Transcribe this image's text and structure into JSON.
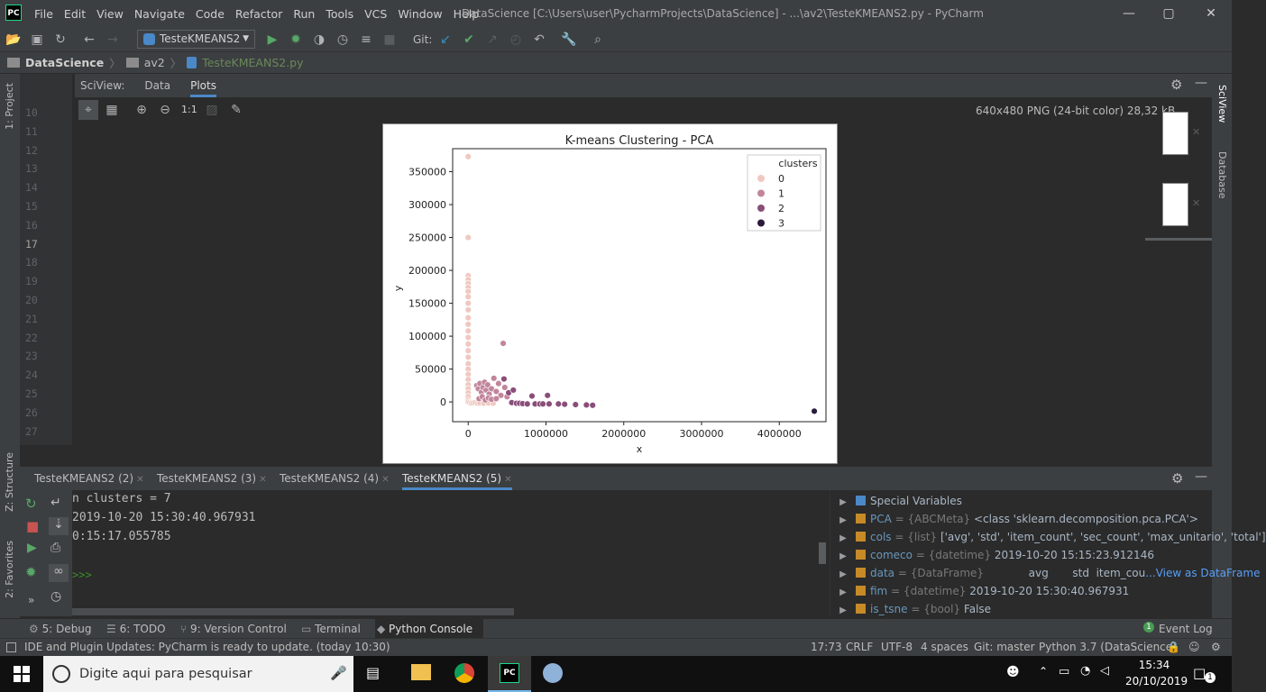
{
  "app": {
    "logo": "PC",
    "window_title": "DataScience [C:\\Users\\user\\PycharmProjects\\DataScience] - ...\\av2\\TesteKMEANS2.py - PyCharm",
    "menu": [
      "File",
      "Edit",
      "View",
      "Navigate",
      "Code",
      "Refactor",
      "Run",
      "Tools",
      "VCS",
      "Window",
      "Help"
    ],
    "min_icon": "—",
    "max_icon": "▢",
    "close_icon": "✕"
  },
  "toolbar": {
    "run_config": "TesteKMEANS2",
    "git_label": "Git:"
  },
  "breadcrumb": [
    "DataScience",
    "av2",
    "TesteKMEANS2.py"
  ],
  "left_strip": {
    "project": "1: Project",
    "structure": "Z: Structure",
    "favorites": "2: Favorites"
  },
  "right_strip": {
    "sciview": "SciView",
    "database": "Database"
  },
  "gutter": {
    "lines": [
      "10",
      "11",
      "12",
      "13",
      "14",
      "15",
      "16",
      "17",
      "18",
      "19",
      "20",
      "21",
      "22",
      "23",
      "24",
      "25",
      "26",
      "27"
    ]
  },
  "sciview": {
    "label": "SciView:",
    "tabs": [
      "Data",
      "Plots"
    ],
    "active_tab": "Plots",
    "zoom_label": "1:1",
    "image_info": "640x480 PNG (24-bit color) 28,32 kB"
  },
  "chart_data": {
    "type": "scatter",
    "title": "K-means Clustering - PCA",
    "xlabel": "x",
    "ylabel": "y",
    "xlim": [
      -200000,
      4600000
    ],
    "ylim": [
      -30000,
      385000
    ],
    "xticks": [
      "0",
      "1000000",
      "2000000",
      "3000000",
      "4000000"
    ],
    "yticks": [
      "0",
      "50000",
      "100000",
      "150000",
      "200000",
      "250000",
      "300000",
      "350000"
    ],
    "legend": {
      "title": "clusters",
      "position": "top-right",
      "labels": [
        "0",
        "1",
        "2",
        "3"
      ]
    },
    "colors": [
      "#efc9c1",
      "#c2859b",
      "#8a4e7a",
      "#2b1a3a"
    ],
    "series": [
      {
        "name": "0",
        "points": [
          [
            0,
            373000
          ],
          [
            0,
            250000
          ],
          [
            0,
            192000
          ],
          [
            0,
            186000
          ],
          [
            0,
            180000
          ],
          [
            0,
            174000
          ],
          [
            0,
            168000
          ],
          [
            0,
            160000
          ],
          [
            0,
            150000
          ],
          [
            0,
            140000
          ],
          [
            0,
            128000
          ],
          [
            0,
            118000
          ],
          [
            0,
            108000
          ],
          [
            0,
            98000
          ],
          [
            0,
            88000
          ],
          [
            0,
            78000
          ],
          [
            0,
            68000
          ],
          [
            0,
            58000
          ],
          [
            0,
            50000
          ],
          [
            0,
            42000
          ],
          [
            0,
            34000
          ],
          [
            0,
            26000
          ],
          [
            0,
            20000
          ],
          [
            0,
            14000
          ],
          [
            0,
            8000
          ],
          [
            0,
            3000
          ],
          [
            0,
            0
          ],
          [
            20000,
            -1000
          ],
          [
            40000,
            -2000
          ],
          [
            60000,
            -1500
          ],
          [
            90000,
            -1000
          ],
          [
            120000,
            -2000
          ],
          [
            150000,
            -1500
          ],
          [
            200000,
            -2000
          ],
          [
            260000,
            -1500
          ],
          [
            320000,
            -2000
          ]
        ]
      },
      {
        "name": "1",
        "points": [
          [
            110000,
            25000
          ],
          [
            130000,
            20000
          ],
          [
            150000,
            28000
          ],
          [
            170000,
            15000
          ],
          [
            190000,
            22000
          ],
          [
            210000,
            30000
          ],
          [
            230000,
            18000
          ],
          [
            250000,
            26000
          ],
          [
            270000,
            12000
          ],
          [
            300000,
            20000
          ],
          [
            330000,
            36000
          ],
          [
            360000,
            16000
          ],
          [
            390000,
            28000
          ],
          [
            420000,
            10000
          ],
          [
            450000,
            89000
          ],
          [
            470000,
            22000
          ],
          [
            500000,
            8000
          ],
          [
            140000,
            5000
          ],
          [
            180000,
            8000
          ],
          [
            220000,
            3000
          ],
          [
            260000,
            6000
          ],
          [
            300000,
            4000
          ],
          [
            360000,
            5000
          ]
        ]
      },
      {
        "name": "2",
        "points": [
          [
            460000,
            35000
          ],
          [
            520000,
            14000
          ],
          [
            560000,
            -1000
          ],
          [
            580000,
            18000
          ],
          [
            620000,
            -2000
          ],
          [
            660000,
            -2000
          ],
          [
            700000,
            -2500
          ],
          [
            760000,
            -3000
          ],
          [
            820000,
            9000
          ],
          [
            860000,
            -3000
          ],
          [
            920000,
            -3000
          ],
          [
            960000,
            -3000
          ],
          [
            1020000,
            10000
          ],
          [
            1040000,
            -3000
          ],
          [
            1160000,
            -3000
          ],
          [
            1240000,
            -3500
          ],
          [
            1380000,
            -4000
          ],
          [
            1520000,
            -4500
          ],
          [
            1600000,
            -5000
          ]
        ]
      },
      {
        "name": "3",
        "points": [
          [
            4450000,
            -14000
          ]
        ]
      }
    ]
  },
  "run_panel": {
    "tabs": [
      "TesteKMEANS2 (2)",
      "TesteKMEANS2 (3)",
      "TesteKMEANS2 (4)",
      "TesteKMEANS2 (5)"
    ],
    "active_tab": "TesteKMEANS2 (5)",
    "console_lines": [
      "n clusters = 7",
      "2019-10-20 15:30:40.967931",
      "0:15:17.055785"
    ],
    "prompt": ">>>",
    "more": "»"
  },
  "variables": [
    {
      "name": "Special Variables",
      "type": "",
      "value": ""
    },
    {
      "name": "PCA",
      "type": " = {ABCMeta} ",
      "value": "<class 'sklearn.decomposition.pca.PCA'>"
    },
    {
      "name": "cols",
      "type": " = {list} ",
      "value": "['avg', 'std', 'item_count', 'sec_count', 'max_unitario', 'total']"
    },
    {
      "name": "comeco",
      "type": " = {datetime} ",
      "value": "2019-10-20 15:15:23.912146"
    },
    {
      "name": "data",
      "type": " = {DataFrame} ",
      "value": "            avg       std  item_cou",
      "link": "...View as DataFrame"
    },
    {
      "name": "fim",
      "type": " = {datetime} ",
      "value": "2019-10-20 15:30:40.967931"
    },
    {
      "name": "is_tsne",
      "type": " = {bool} ",
      "value": "False"
    }
  ],
  "tool_tabs": [
    "5: Debug",
    "6: TODO",
    "9: Version Control",
    "Terminal",
    "Python Console"
  ],
  "event_log": {
    "count": "1",
    "label": "Event Log"
  },
  "status": {
    "message": "IDE and Plugin Updates: PyCharm is ready to update. (today 10:30)",
    "position": "17:73",
    "line_sep": "CRLF",
    "encoding": "UTF-8",
    "indent": "4 spaces",
    "git": "Git: master",
    "interpreter": "Python 3.7 (DataScience)"
  },
  "taskbar": {
    "search_placeholder": "Digite aqui para pesquisar",
    "time": "15:34",
    "date": "20/10/2019",
    "notif_count": "1"
  }
}
